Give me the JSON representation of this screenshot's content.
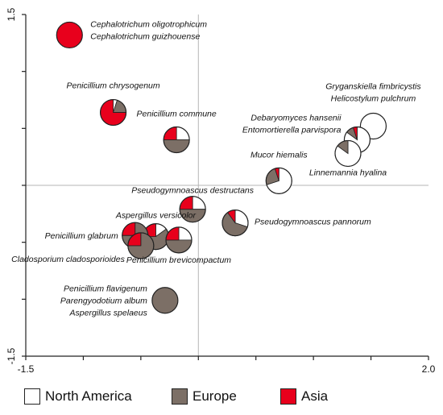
{
  "colors": {
    "north_america": "#ffffff",
    "europe": "#7c6f66",
    "asia": "#e8001c"
  },
  "chart_data": {
    "type": "scatter",
    "xlim": [
      -1.5,
      2.0
    ],
    "ylim": [
      -1.5,
      1.5
    ],
    "xticks": [
      -1.5,
      -1.0,
      -0.5,
      0.0,
      0.5,
      1.0,
      1.5,
      2.0
    ],
    "yticks": [
      -1.5,
      -1.0,
      -0.5,
      0.0,
      0.5,
      1.0,
      1.5
    ],
    "xtick_labels": {
      "-1.5": "-1.5",
      "2.0": "2.0"
    },
    "ytick_labels": {
      "1.5": "1.5",
      "-1.5": "-1.5"
    },
    "ref_lines": {
      "x": 0.0,
      "y": 0.0
    },
    "legend": [
      {
        "name": "North America",
        "color_key": "north_america"
      },
      {
        "name": "Europe",
        "color_key": "europe"
      },
      {
        "name": "Asia",
        "color_key": "asia"
      }
    ],
    "points": [
      {
        "x": -1.12,
        "y": 1.32,
        "composition": [
          0,
          0,
          1
        ],
        "label_lines": [
          "Cephalotrichum oligotrophicum",
          "Cephalotrichum guizhouense"
        ],
        "label_align": "start"
      },
      {
        "x": -0.74,
        "y": 0.64,
        "composition": [
          0.05,
          0.2,
          0.75
        ],
        "label_lines": [
          "Penicillium chrysogenum"
        ],
        "label_align": "middle"
      },
      {
        "x": -0.19,
        "y": 0.4,
        "composition": [
          0.25,
          0.5,
          0.25
        ],
        "label_lines": [
          "Penicillium commune"
        ],
        "label_align": "middle"
      },
      {
        "x": 1.52,
        "y": 0.52,
        "composition": [
          1,
          0,
          0
        ],
        "label_lines": [
          "Gryganskiella fimbricystis",
          "Helicostylum pulchrum"
        ],
        "label_align": "middle"
      },
      {
        "x": 1.38,
        "y": 0.4,
        "composition": [
          0.85,
          0.1,
          0.05
        ],
        "label_lines": [
          "Debaryomyces hansenii",
          "Entomortierella parvispora"
        ],
        "label_align": "end"
      },
      {
        "x": 1.3,
        "y": 0.28,
        "composition": [
          0.85,
          0.15,
          0
        ],
        "label_lines": [
          "Linnemannia hyalina"
        ],
        "label_align": "middle"
      },
      {
        "x": 0.7,
        "y": 0.04,
        "composition": [
          0.7,
          0.25,
          0.05
        ],
        "label_lines": [
          "Mucor hiemalis"
        ],
        "label_align": "middle"
      },
      {
        "x": -0.05,
        "y": -0.21,
        "composition": [
          0.25,
          0.5,
          0.25
        ],
        "label_lines": [
          "Pseudogymnoascus destructans"
        ],
        "label_align": "middle"
      },
      {
        "x": 0.32,
        "y": -0.33,
        "composition": [
          0.3,
          0.6,
          0.1
        ],
        "label_lines": [
          "Pseudogymnoascus pannorum"
        ],
        "label_align": "start"
      },
      {
        "x": -0.37,
        "y": -0.45,
        "composition": [
          0.15,
          0.6,
          0.25
        ],
        "label_lines": [
          "Aspergillus versicolor"
        ],
        "label_align": "middle"
      },
      {
        "x": -0.55,
        "y": -0.44,
        "composition": [
          0,
          0.75,
          0.25
        ],
        "label_lines": [
          "Penicillium glabrum"
        ],
        "label_align": "end"
      },
      {
        "x": -0.17,
        "y": -0.48,
        "composition": [
          0.25,
          0.5,
          0.25
        ],
        "label_lines": [
          "Penicillium brevicompactum"
        ],
        "label_align": "middle"
      },
      {
        "x": -0.5,
        "y": -0.53,
        "composition": [
          0,
          0.75,
          0.25
        ],
        "label_lines": [
          "Cladosporium cladosporioides"
        ],
        "label_align": "end"
      },
      {
        "x": -0.29,
        "y": -1.01,
        "composition": [
          0,
          1,
          0
        ],
        "label_lines": [
          "Penicillium flavigenum",
          "Parengyodotium album",
          "Aspergillus spelaeus"
        ],
        "label_align": "end"
      }
    ]
  }
}
